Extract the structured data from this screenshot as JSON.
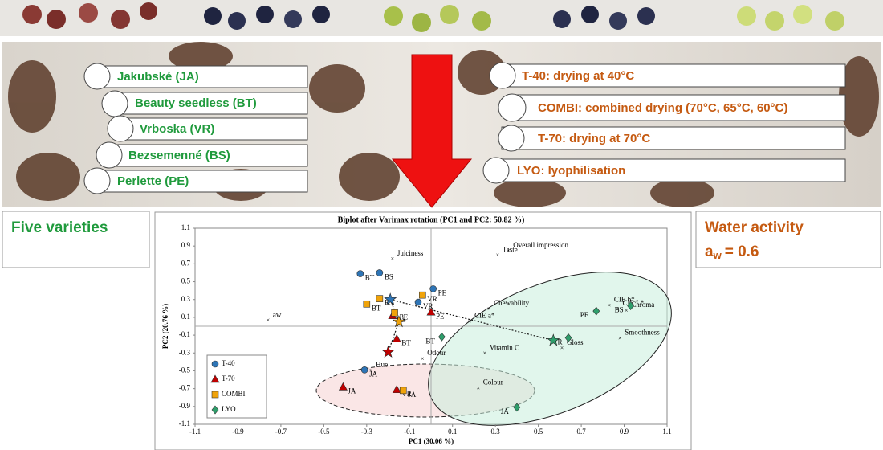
{
  "varieties": [
    "Jakubské (JA)",
    "Beauty seedless (BT)",
    "Vrboska (VR)",
    "Bezsemenné (BS)",
    "Perlette (PE)"
  ],
  "treatments": [
    "T-40: drying at 40°C",
    "COMBI: combined drying (70°C, 65°C, 60°C)",
    "T-70: drying at 70°C",
    "LYO: lyophilisation"
  ],
  "varieties_title": "Five varieties",
  "water_activity": {
    "title": "Water activity",
    "symbol": "a",
    "subscript": "w",
    "value": "= 0.6"
  },
  "chart_data": {
    "type": "scatter",
    "title": "Biplot after Varimax rotation (PC1 and PC2: 50.82 %)",
    "x_label": "PC1 (30.06 %)",
    "y_label": "PC2 (20.76 %)",
    "xlim": [
      -1.1,
      1.1
    ],
    "ylim": [
      -1.1,
      1.1
    ],
    "xticks": [
      -1.1,
      -0.9,
      -0.7,
      -0.5,
      -0.3,
      -0.1,
      0.1,
      0.3,
      0.5,
      0.7,
      0.9,
      1.1
    ],
    "yticks": [
      -1.1,
      -0.9,
      -0.7,
      -0.5,
      -0.3,
      -0.1,
      0.1,
      0.3,
      0.5,
      0.7,
      0.9,
      1.1
    ],
    "series": [
      {
        "name": "T-40",
        "color": "#2e75b6",
        "marker": "circle",
        "labels": [
          "BT",
          "BS",
          "PE",
          "VR",
          "JA"
        ],
        "x": [
          -0.33,
          -0.24,
          0.01,
          -0.06,
          -0.31
        ],
        "y": [
          0.59,
          0.6,
          0.42,
          0.27,
          -0.49
        ]
      },
      {
        "name": "T-70",
        "color": "#c00000",
        "marker": "triangle",
        "labels": [
          "PE",
          "BS",
          "BT",
          "JA",
          "VR"
        ],
        "x": [
          0.0,
          -0.18,
          -0.16,
          -0.41,
          -0.16
        ],
        "y": [
          0.16,
          0.12,
          -0.14,
          -0.68,
          -0.71
        ]
      },
      {
        "name": "COMBI",
        "color": "#f0a30a",
        "marker": "square",
        "labels": [
          "BS",
          "BT",
          "PE",
          "VR",
          "JA"
        ],
        "x": [
          -0.24,
          -0.3,
          -0.17,
          -0.04,
          -0.13
        ],
        "y": [
          0.31,
          0.25,
          0.15,
          0.35,
          -0.72
        ]
      },
      {
        "name": "LYO",
        "color": "#2e9e6b",
        "marker": "diamond",
        "labels": [
          "PE",
          "BS",
          "VR",
          "BT",
          "JA"
        ],
        "x": [
          0.77,
          0.93,
          0.64,
          0.05,
          0.4
        ],
        "y": [
          0.17,
          0.23,
          -0.13,
          -0.12,
          -0.91
        ]
      }
    ],
    "centroids": {
      "colors": [
        "#2e75b6",
        "#f0a30a",
        "#c00000",
        "#2e9e6b"
      ],
      "x": [
        -0.19,
        -0.15,
        -0.2,
        0.57
      ],
      "y": [
        0.3,
        0.05,
        -0.29,
        -0.16
      ]
    },
    "variables": {
      "labels": [
        "Juiciness",
        "Taste",
        "Overall impression",
        "aw",
        "Chewability",
        "CIE a*",
        "CIE b*",
        "CIE L*",
        "Chroma",
        "Smoothness",
        "Gloss",
        "Vitamin C",
        "Odour",
        "Hue",
        "Colour"
      ],
      "x": [
        -0.18,
        0.31,
        0.36,
        -0.76,
        0.27,
        0.18,
        0.83,
        0.87,
        0.91,
        0.88,
        0.61,
        0.25,
        -0.04,
        -0.28,
        0.22
      ],
      "y": [
        0.75,
        0.79,
        0.84,
        0.06,
        0.19,
        0.05,
        0.23,
        0.19,
        0.17,
        -0.14,
        -0.25,
        -0.31,
        -0.37,
        -0.5,
        -0.7
      ]
    }
  }
}
